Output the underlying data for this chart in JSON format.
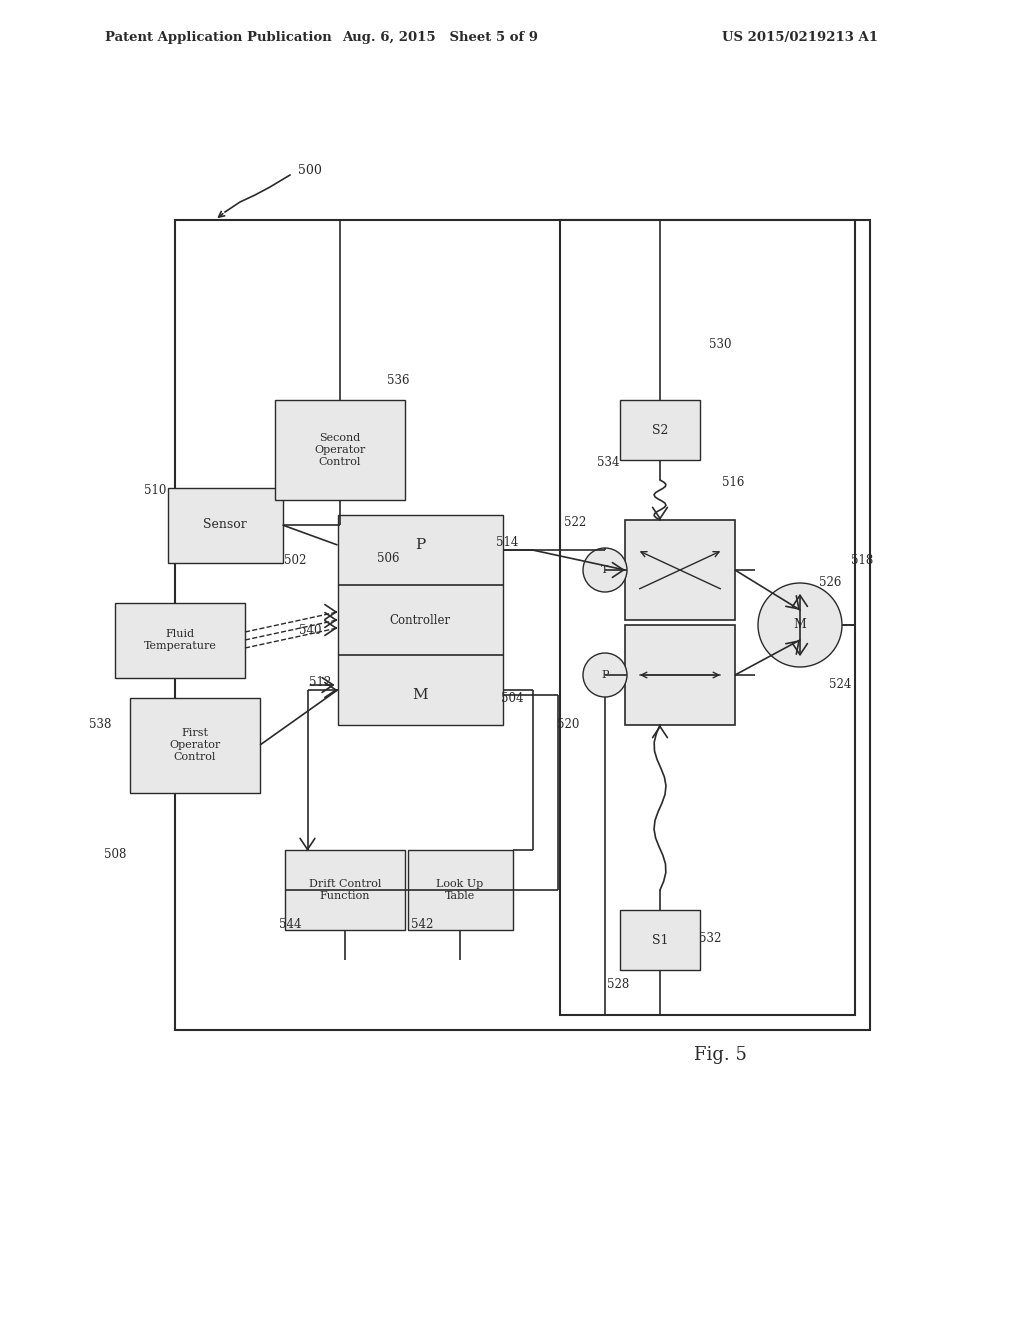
{
  "title_left": "Patent Application Publication",
  "title_mid": "Aug. 6, 2015   Sheet 5 of 9",
  "title_right": "US 2015/0219213 A1",
  "background": "#ffffff",
  "line_color": "#2a2a2a",
  "box_fill": "#e8e8e8"
}
